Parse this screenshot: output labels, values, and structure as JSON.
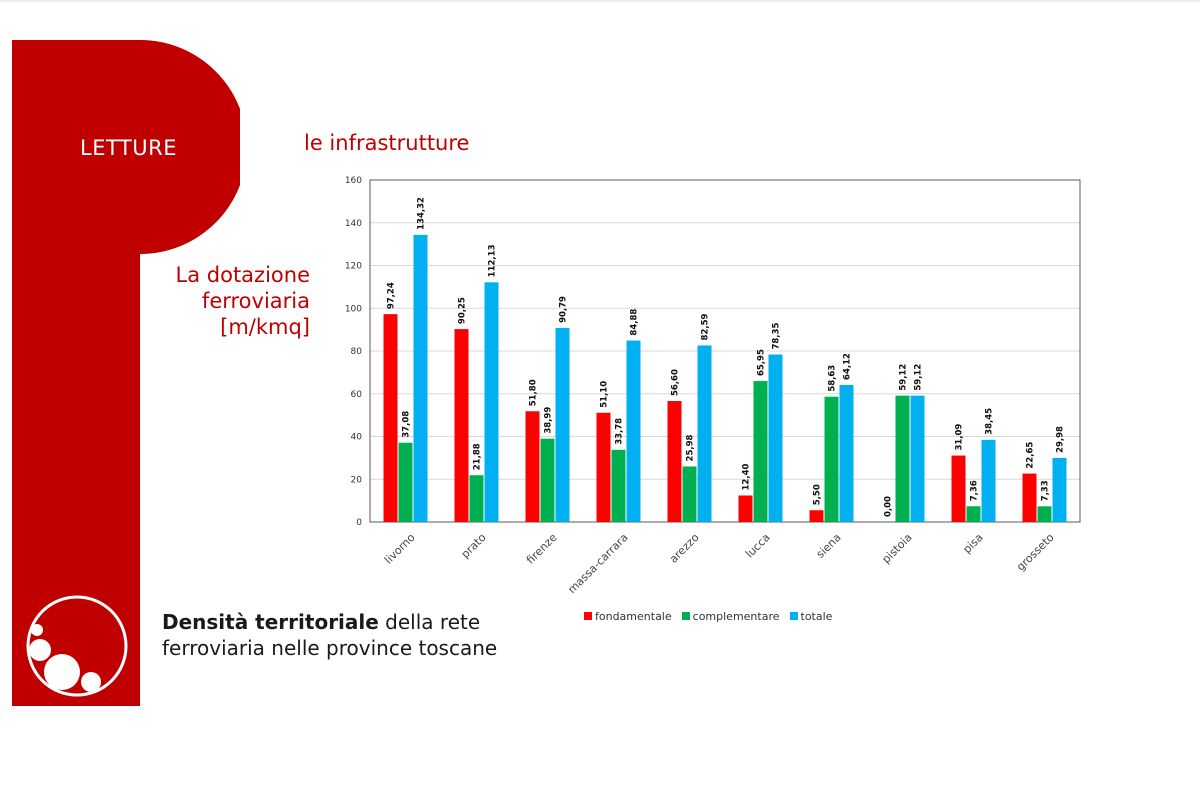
{
  "header": {
    "section": "LETTURE",
    "subtitle": "le infrastrutture"
  },
  "side_title": {
    "line1": "La dotazione",
    "line2": "ferroviaria",
    "line3": "[m/kmq]"
  },
  "caption": {
    "bold": "Densità territoriale",
    "rest1": " della rete",
    "line2": "ferroviaria nelle province toscane"
  },
  "colors": {
    "brand_red": "#c00000",
    "fondamentale": "#ff0000",
    "complementare": "#00b050",
    "totale": "#00b0f0"
  },
  "icons": [
    "bubbles-logo-icon"
  ],
  "chart_data": {
    "type": "bar",
    "title": "",
    "xlabel": "",
    "ylabel": "",
    "ylim": [
      0,
      160
    ],
    "yticks": [
      0,
      20,
      40,
      60,
      80,
      100,
      120,
      140,
      160
    ],
    "grid": true,
    "legend_position": "bottom",
    "categories": [
      "livorno",
      "prato",
      "firenze",
      "massa-carrara",
      "arezzo",
      "lucca",
      "siena",
      "pistoia",
      "pisa",
      "grosseto"
    ],
    "series": [
      {
        "name": "fondamentale",
        "color": "#ff0000",
        "values": [
          97.24,
          90.25,
          51.8,
          51.1,
          56.6,
          12.4,
          5.5,
          0.0,
          31.09,
          22.65
        ],
        "labels": [
          "97,24",
          "90,25",
          "51,80",
          "51,10",
          "56,60",
          "12,40",
          "5,50",
          "0,00",
          "31,09",
          "22,65"
        ]
      },
      {
        "name": "complementare",
        "color": "#00b050",
        "values": [
          37.08,
          21.88,
          38.99,
          33.78,
          25.98,
          65.95,
          58.63,
          59.12,
          7.36,
          7.33
        ],
        "labels": [
          "37,08",
          "21,88",
          "38,99",
          "33,78",
          "25,98",
          "65,95",
          "58,63",
          "59,12",
          "7,36",
          "7,33"
        ]
      },
      {
        "name": "totale",
        "color": "#00b0f0",
        "values": [
          134.32,
          112.13,
          90.79,
          84.88,
          82.59,
          78.35,
          64.12,
          59.12,
          38.45,
          29.98
        ],
        "labels": [
          "134,32",
          "112,13",
          "90,79",
          "84,88",
          "82,59",
          "78,35",
          "64,12",
          "59,12",
          "38,45",
          "29,98"
        ]
      }
    ]
  }
}
